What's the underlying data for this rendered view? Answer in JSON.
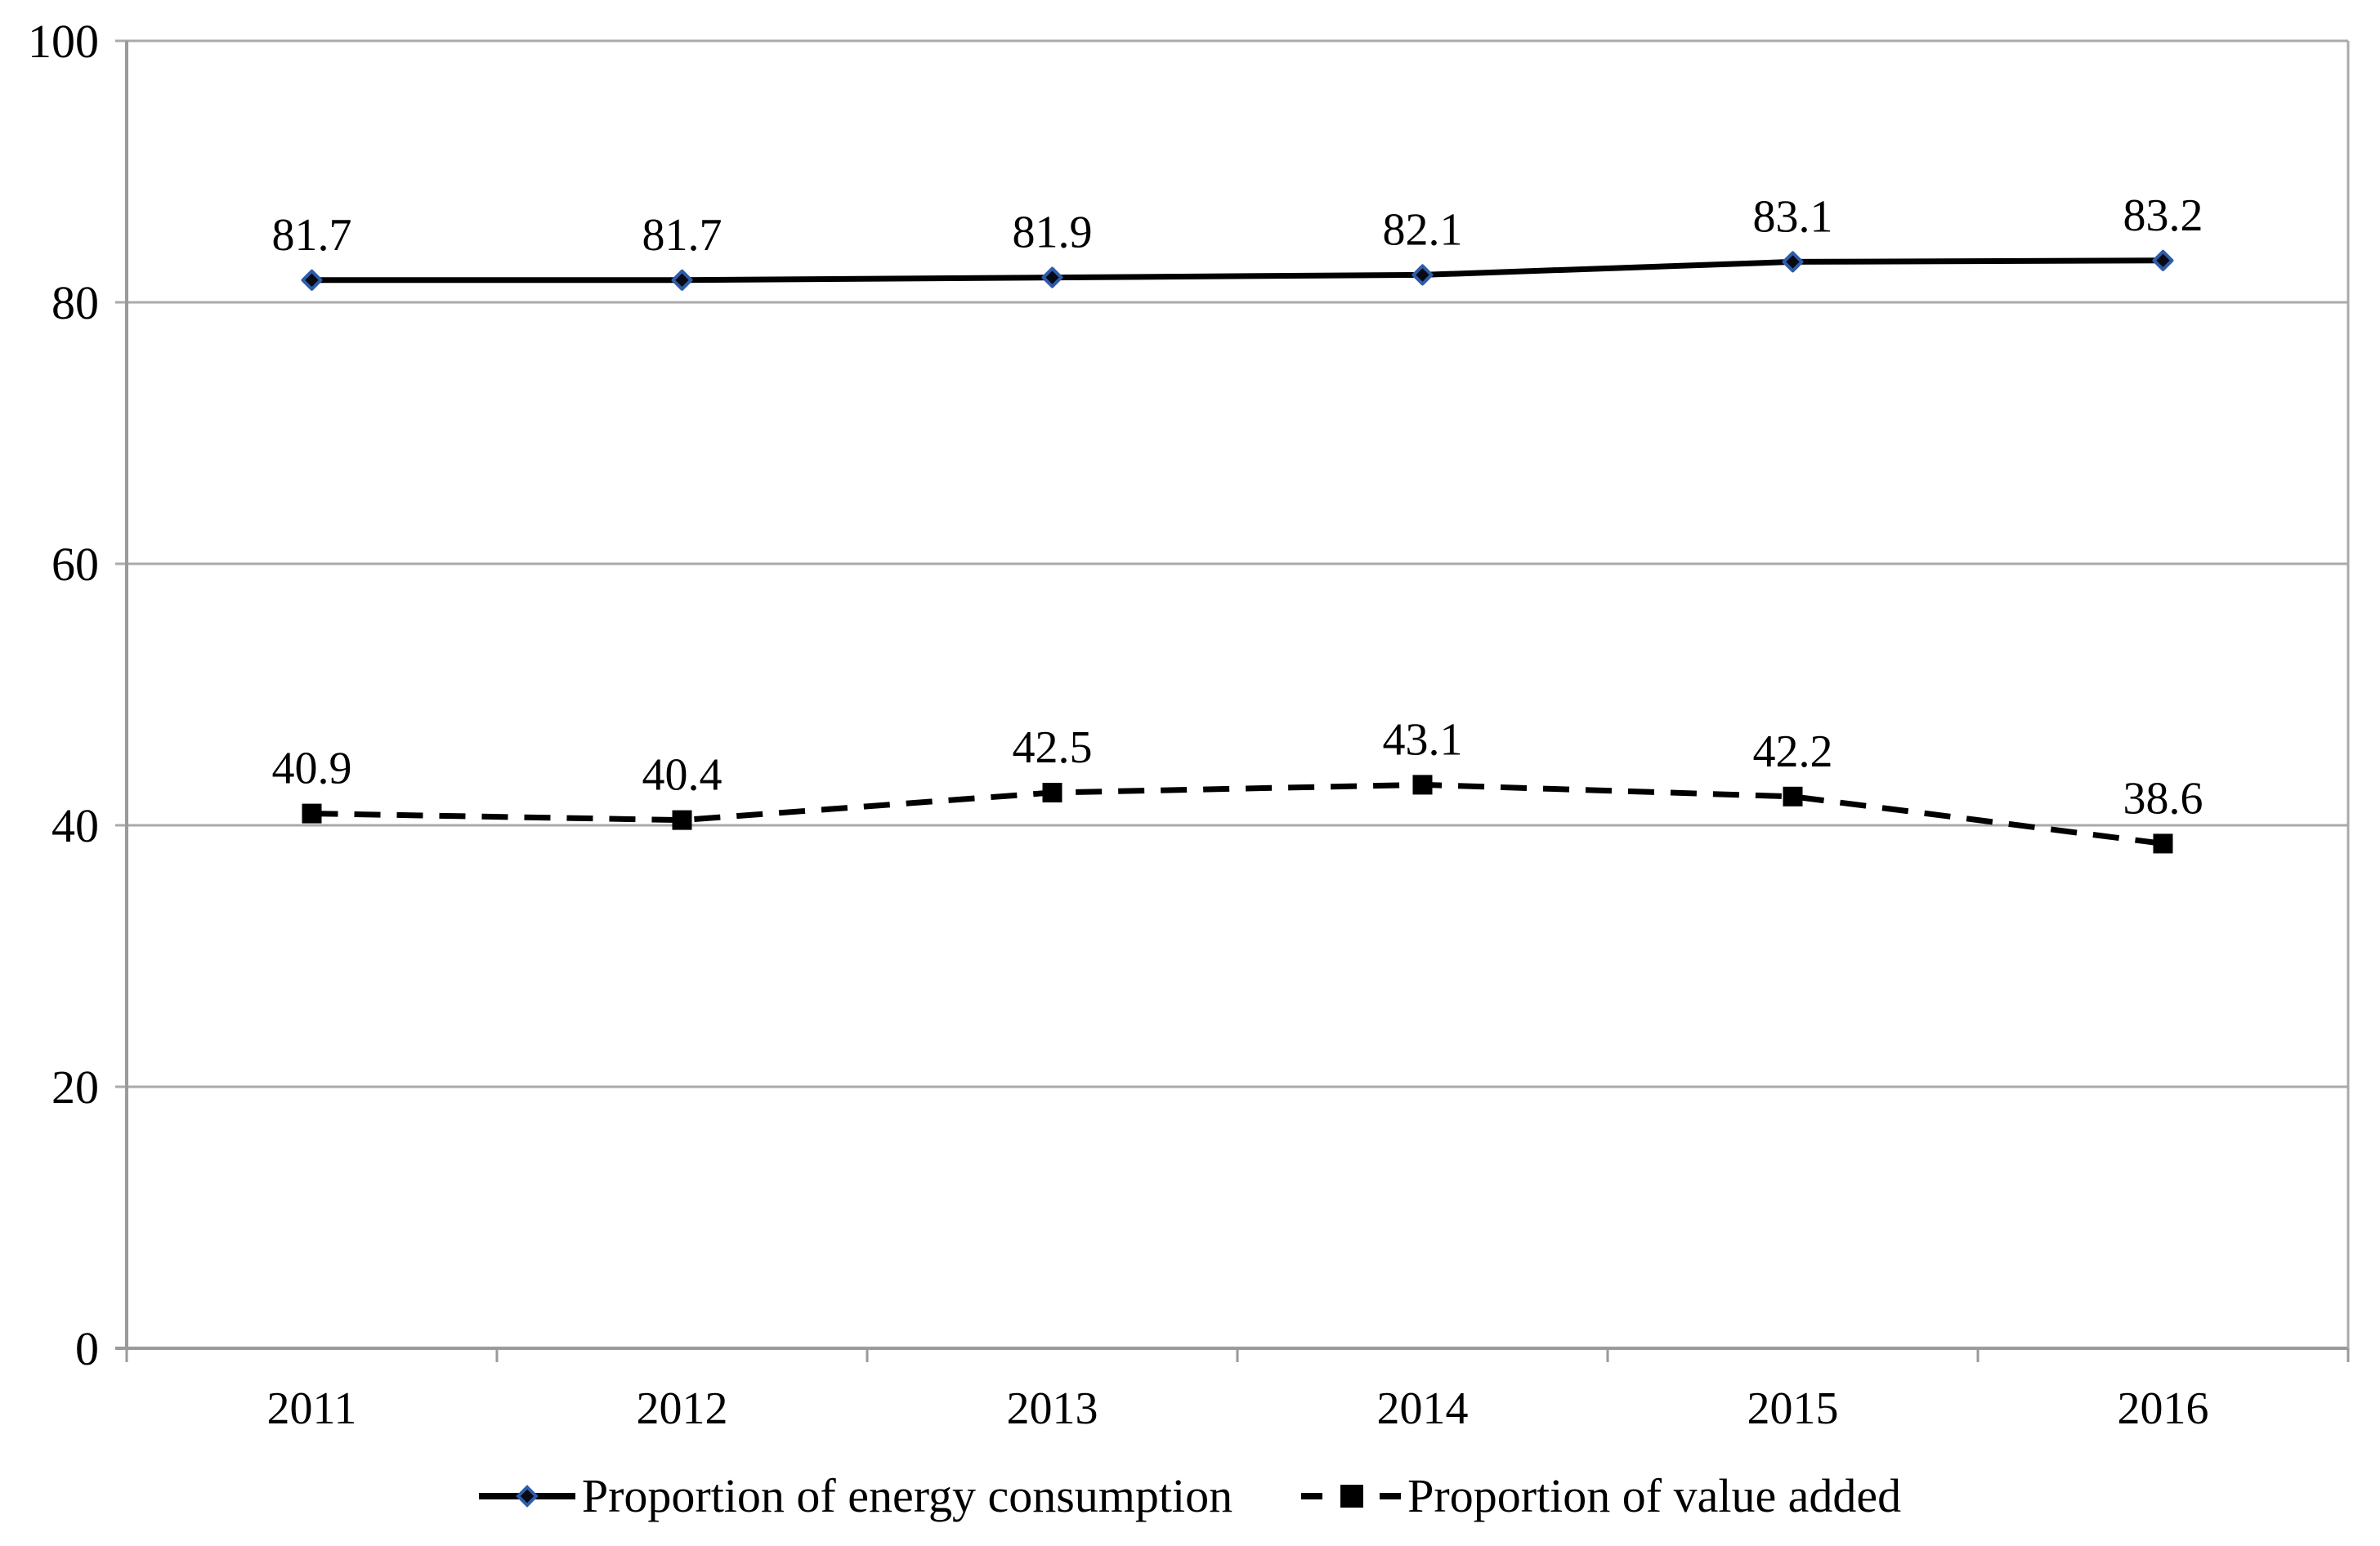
{
  "chart_data": {
    "type": "line",
    "title": "",
    "xlabel": "",
    "ylabel": "",
    "categories": [
      "2011",
      "2012",
      "2013",
      "2014",
      "2015",
      "2016"
    ],
    "series": [
      {
        "name": "Proportion of energy consumption",
        "values": [
          81.7,
          81.7,
          81.9,
          82.1,
          83.1,
          83.2
        ],
        "labels": [
          "81.7",
          "81.7",
          "81.9",
          "82.1",
          "83.1",
          "83.2"
        ],
        "line_style": "solid",
        "marker": "diamond",
        "line_color": "#000000",
        "marker_fill": "#0a0a14",
        "marker_stroke": "#2e5ca8"
      },
      {
        "name": "Proportion of value added",
        "values": [
          40.9,
          40.4,
          42.5,
          43.1,
          42.2,
          38.6
        ],
        "labels": [
          "40.9",
          "40.4",
          "42.5",
          "43.1",
          "42.2",
          "38.6"
        ],
        "line_style": "dashed",
        "marker": "square",
        "line_color": "#000000",
        "marker_fill": "#000000",
        "marker_stroke": "#000000"
      }
    ],
    "ylim": [
      0,
      100
    ],
    "yticks": [
      0,
      20,
      40,
      60,
      80,
      100
    ],
    "ytick_labels": [
      "0",
      "20",
      "40",
      "60",
      "80",
      "100"
    ],
    "grid": true,
    "legend_position": "bottom",
    "colors": {
      "background": "#ffffff",
      "grid": "#aaaaaa",
      "axis": "#9a9a9a",
      "text": "#000000"
    }
  }
}
